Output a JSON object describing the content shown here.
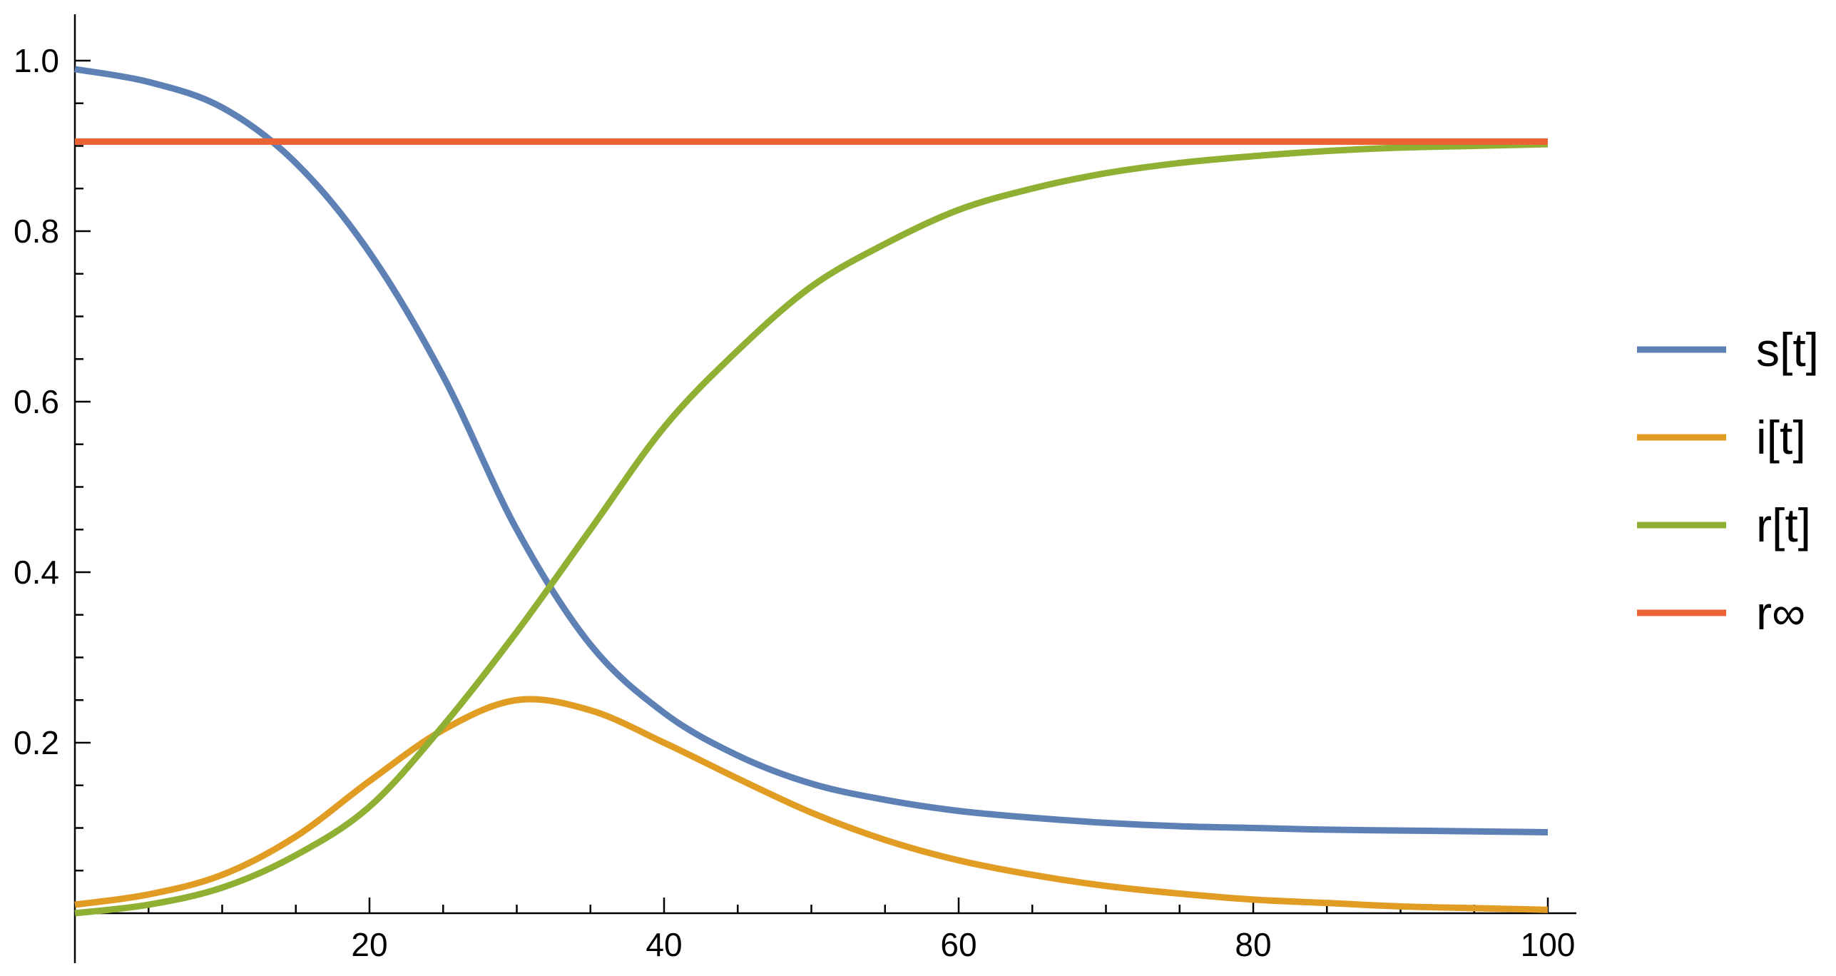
{
  "chart_data": {
    "type": "line",
    "title": "",
    "xlabel": "",
    "ylabel": "",
    "xlim": [
      0,
      100
    ],
    "ylim": [
      0,
      1.0
    ],
    "x_ticks": [
      20,
      40,
      60,
      80,
      100
    ],
    "x_tick_labels": [
      "20",
      "40",
      "60",
      "80",
      "100"
    ],
    "x_minor_step": 5,
    "y_ticks": [
      0.2,
      0.4,
      0.6,
      0.8,
      1.0
    ],
    "y_tick_labels": [
      "0.2",
      "0.4",
      "0.6",
      "0.8",
      "1.0"
    ],
    "y_minor_step": 0.05,
    "grid": false,
    "legend_position": "right",
    "x": [
      0,
      5,
      10,
      15,
      20,
      25,
      30,
      35,
      40,
      45,
      50,
      55,
      60,
      65,
      70,
      75,
      80,
      85,
      90,
      95,
      100
    ],
    "series": [
      {
        "name": "s[t]",
        "color": "#5E81B5",
        "values": [
          0.99,
          0.975,
          0.945,
          0.88,
          0.775,
          0.63,
          0.45,
          0.315,
          0.235,
          0.185,
          0.152,
          0.133,
          0.12,
          0.112,
          0.106,
          0.102,
          0.1,
          0.098,
          0.097,
          0.096,
          0.095
        ]
      },
      {
        "name": "i[t]",
        "color": "#E19C24",
        "values": [
          0.01,
          0.022,
          0.045,
          0.09,
          0.155,
          0.215,
          0.25,
          0.238,
          0.2,
          0.158,
          0.118,
          0.086,
          0.062,
          0.045,
          0.032,
          0.023,
          0.016,
          0.012,
          0.008,
          0.006,
          0.004
        ]
      },
      {
        "name": "r[t]",
        "color": "#8FB032",
        "values": [
          0.0,
          0.01,
          0.03,
          0.068,
          0.125,
          0.22,
          0.33,
          0.45,
          0.57,
          0.66,
          0.735,
          0.785,
          0.825,
          0.85,
          0.868,
          0.88,
          0.888,
          0.894,
          0.898,
          0.9,
          0.902
        ]
      },
      {
        "name": "r∞",
        "color": "#EB6235",
        "values": [
          0.905,
          0.905,
          0.905,
          0.905,
          0.905,
          0.905,
          0.905,
          0.905,
          0.905,
          0.905,
          0.905,
          0.905,
          0.905,
          0.905,
          0.905,
          0.905,
          0.905,
          0.905,
          0.905,
          0.905,
          0.905
        ]
      }
    ]
  }
}
